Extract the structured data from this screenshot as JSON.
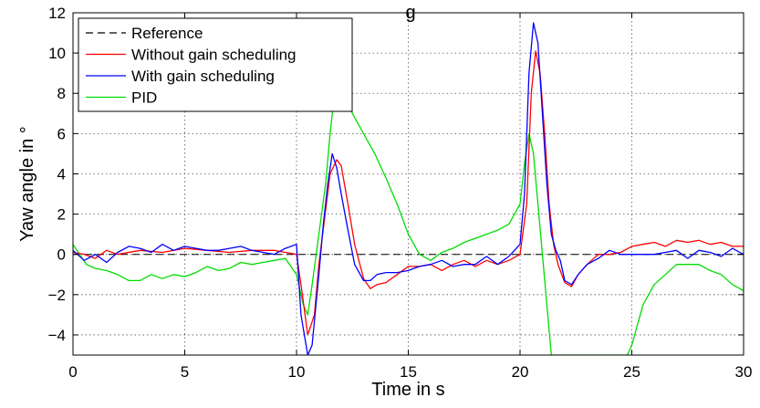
{
  "chart_data": {
    "type": "line",
    "title_fragment": "g",
    "xlabel": "Time in s",
    "ylabel": "Yaw angle in °",
    "xlim": [
      0,
      30
    ],
    "ylim": [
      -5,
      12
    ],
    "xticks": [
      0,
      5,
      10,
      15,
      20,
      25,
      30
    ],
    "yticks": [
      -4,
      -2,
      0,
      2,
      4,
      6,
      8,
      10,
      12
    ],
    "grid": true,
    "legend_position": "top-left",
    "series": [
      {
        "name": "Reference",
        "color": "#000000",
        "dash": "dashed",
        "x": [
          0,
          30
        ],
        "y": [
          0,
          0
        ]
      },
      {
        "name": "Without gain scheduling",
        "color": "#ff0000",
        "dash": "solid",
        "x": [
          0,
          0.5,
          1,
          1.5,
          2,
          3,
          4,
          5,
          6,
          7,
          8,
          9,
          9.5,
          10,
          10.2,
          10.5,
          10.8,
          11,
          11.3,
          11.5,
          11.8,
          12,
          12.3,
          12.6,
          13,
          13.3,
          13.6,
          14,
          14.5,
          15,
          15.5,
          16,
          16.5,
          17,
          17.5,
          18,
          18.5,
          19,
          19.5,
          20,
          20.3,
          20.5,
          20.7,
          20.9,
          21.1,
          21.3,
          21.5,
          21.7,
          22,
          22.3,
          22.6,
          23,
          23.5,
          24,
          24.5,
          25,
          25.5,
          26,
          26.5,
          27,
          27.5,
          28,
          28.5,
          29,
          29.5,
          30
        ],
        "y": [
          0.1,
          0,
          -0.2,
          0.2,
          0,
          0.2,
          0.1,
          0.3,
          0.2,
          0.1,
          0.2,
          0.2,
          0.1,
          0,
          -1.5,
          -4.0,
          -3.0,
          -0.5,
          2.2,
          4.0,
          4.7,
          4.4,
          2.5,
          0.5,
          -1.2,
          -1.7,
          -1.5,
          -1.4,
          -1.0,
          -0.6,
          -0.6,
          -0.5,
          -0.8,
          -0.5,
          -0.3,
          -0.6,
          -0.3,
          -0.5,
          -0.3,
          0,
          2.5,
          8.0,
          10.1,
          9.0,
          6.0,
          2.5,
          0.5,
          -0.5,
          -1.4,
          -1.6,
          -1.0,
          -0.5,
          0,
          0,
          0.1,
          0.4,
          0.5,
          0.6,
          0.4,
          0.7,
          0.6,
          0.7,
          0.5,
          0.6,
          0.4,
          0.4
        ]
      },
      {
        "name": "With gain scheduling",
        "color": "#0000ff",
        "dash": "solid",
        "x": [
          0,
          0.5,
          1,
          1.5,
          2,
          2.5,
          3,
          3.5,
          4,
          4.5,
          5,
          5.5,
          6,
          6.5,
          7,
          7.5,
          8,
          8.5,
          9,
          9.5,
          10,
          10.2,
          10.5,
          10.7,
          11,
          11.2,
          11.4,
          11.6,
          11.8,
          12,
          12.3,
          12.6,
          13,
          13.3,
          13.6,
          14,
          14.5,
          15,
          15.5,
          16,
          16.5,
          17,
          17.5,
          18,
          18.5,
          19,
          19.5,
          20,
          20.2,
          20.4,
          20.6,
          20.8,
          21,
          21.2,
          21.4,
          21.6,
          21.8,
          22,
          22.3,
          22.6,
          23,
          23.5,
          24,
          24.5,
          25,
          25.5,
          26,
          26.5,
          27,
          27.5,
          28,
          28.5,
          29,
          29.5,
          30
        ],
        "y": [
          0.2,
          -0.3,
          0,
          -0.4,
          0.1,
          0.4,
          0.3,
          0.1,
          0.5,
          0.2,
          0.4,
          0.3,
          0.2,
          0.2,
          0.3,
          0.4,
          0.2,
          0.1,
          0,
          0.3,
          0.5,
          -3.0,
          -5.0,
          -4.5,
          -1.0,
          1.5,
          3.5,
          5.0,
          4.3,
          3.0,
          1.2,
          -0.5,
          -1.3,
          -1.3,
          -1.0,
          -0.9,
          -0.9,
          -0.8,
          -0.6,
          -0.5,
          -0.3,
          -0.6,
          -0.5,
          -0.5,
          -0.1,
          -0.5,
          -0.1,
          0.5,
          3.0,
          9.0,
          11.5,
          10.5,
          7.0,
          3.5,
          1.0,
          0.2,
          -0.3,
          -1.3,
          -1.5,
          -1.0,
          -0.5,
          -0.2,
          0.2,
          0,
          0,
          0,
          0,
          0.1,
          0.2,
          -0.2,
          0.2,
          0.1,
          -0.1,
          0.3,
          0
        ]
      },
      {
        "name": "PID",
        "color": "#00dd00",
        "dash": "solid",
        "x": [
          0,
          0.3,
          0.6,
          1,
          1.5,
          2,
          2.5,
          3,
          3.5,
          4,
          4.5,
          5,
          5.5,
          6,
          6.5,
          7,
          7.5,
          8,
          8.5,
          9,
          9.5,
          10,
          10.3,
          10.5,
          10.7,
          11,
          11.3,
          11.5,
          11.7,
          11.9,
          12.2,
          12.5,
          13,
          13.5,
          14,
          14.5,
          15,
          15.5,
          16,
          16.5,
          17,
          17.5,
          18,
          18.5,
          19,
          19.5,
          20,
          20.2,
          20.4,
          20.6,
          20.8,
          21,
          21.2,
          21.4,
          21.6,
          21.8,
          22,
          22.5,
          23,
          23.5,
          24,
          24.5,
          24.8,
          25,
          25.5,
          26,
          26.5,
          27,
          27.5,
          28,
          28.5,
          29,
          29.5,
          30
        ],
        "y": [
          0.5,
          0,
          -0.5,
          -0.7,
          -0.8,
          -1.0,
          -1.3,
          -1.3,
          -1.0,
          -1.2,
          -1.0,
          -1.1,
          -0.9,
          -0.6,
          -0.8,
          -0.7,
          -0.4,
          -0.5,
          -0.4,
          -0.3,
          -0.2,
          -1.0,
          -2.5,
          -3.0,
          -1.5,
          1.0,
          3.5,
          6.0,
          8.0,
          8.5,
          7.8,
          7.0,
          6.0,
          5.0,
          3.8,
          2.5,
          1.0,
          0,
          -0.3,
          0.1,
          0.3,
          0.6,
          0.8,
          1.0,
          1.2,
          1.5,
          2.5,
          4.5,
          6.0,
          5.0,
          2.5,
          0,
          -2.5,
          -5.0,
          -5.0,
          -5.0,
          -5.0,
          -5.0,
          -5.0,
          -5.0,
          -5.0,
          -5.0,
          -5.0,
          -4.5,
          -2.5,
          -1.5,
          -1.0,
          -0.5,
          -0.5,
          -0.5,
          -0.8,
          -1.0,
          -1.5,
          -1.8
        ]
      }
    ]
  }
}
